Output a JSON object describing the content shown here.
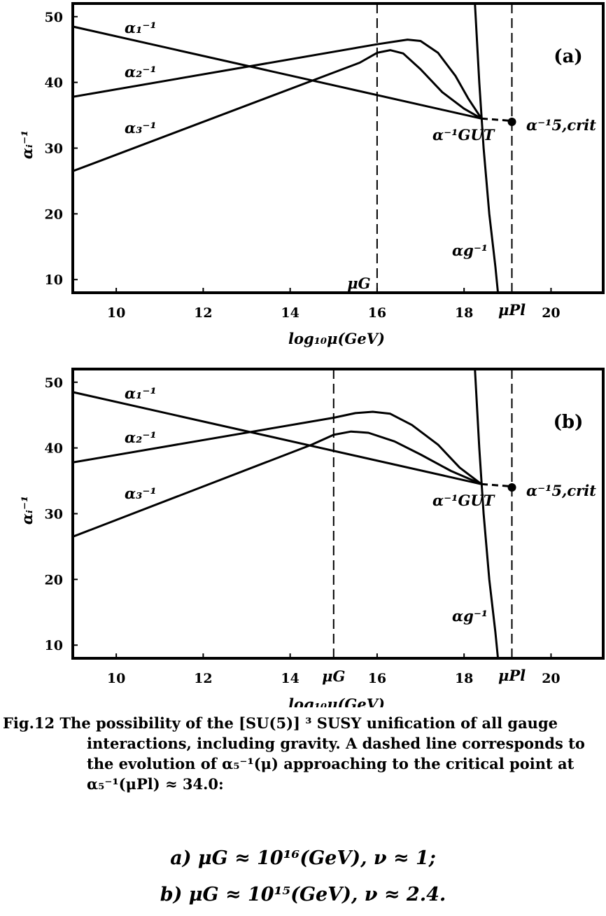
{
  "chart_data": [
    {
      "type": "line",
      "panel_label": "(a)",
      "xlabel": "log₁₀μ(GeV)",
      "ylabel": "αᵢ⁻¹",
      "xlim": [
        9,
        21.2
      ],
      "ylim": [
        8,
        52
      ],
      "xticks": [
        10,
        12,
        14,
        16,
        18,
        20
      ],
      "yticks": [
        10,
        20,
        30,
        40,
        50
      ],
      "series": [
        {
          "name": "α₁⁻¹",
          "style": "solid",
          "points": [
            [
              9,
              48.5
            ],
            [
              18.4,
              34.5
            ]
          ]
        },
        {
          "name": "α₂⁻¹",
          "style": "solid",
          "points": [
            [
              9,
              37.8
            ],
            [
              16.0,
              45.8
            ],
            [
              16.4,
              46.2
            ],
            [
              16.7,
              46.5
            ],
            [
              17.0,
              46.3
            ],
            [
              17.4,
              44.5
            ],
            [
              17.8,
              41.0
            ],
            [
              18.1,
              37.5
            ],
            [
              18.4,
              34.5
            ]
          ]
        },
        {
          "name": "α₃⁻¹",
          "style": "solid",
          "points": [
            [
              9,
              26.5
            ],
            [
              15.6,
              43.0
            ],
            [
              16.0,
              44.5
            ],
            [
              16.3,
              44.9
            ],
            [
              16.6,
              44.4
            ],
            [
              17.0,
              42.0
            ],
            [
              17.5,
              38.5
            ],
            [
              18.0,
              36.0
            ],
            [
              18.4,
              34.5
            ]
          ]
        },
        {
          "name": "α_g⁻¹",
          "style": "solid",
          "points": [
            [
              18.25,
              52.0
            ],
            [
              18.35,
              40.0
            ],
            [
              18.45,
              30.0
            ],
            [
              18.58,
              20.0
            ],
            [
              18.72,
              12.0
            ],
            [
              18.78,
              8.0
            ]
          ]
        },
        {
          "name": "α₅⁻¹",
          "style": "dashed",
          "points": [
            [
              18.4,
              34.5
            ],
            [
              19.0,
              34.2
            ],
            [
              19.1,
              34.0
            ]
          ]
        },
        {
          "name": "μ_G",
          "style": "dashed-vertical",
          "points": [
            [
              16,
              8
            ],
            [
              16,
              52
            ]
          ]
        },
        {
          "name": "μ_Pl",
          "style": "dashed-vertical",
          "points": [
            [
              19.1,
              8
            ],
            [
              19.1,
              52
            ]
          ]
        }
      ],
      "critical_point": {
        "x": 19.1,
        "y": 34.0,
        "label": "α⁻¹5,crit"
      },
      "annotations": {
        "alpha1": "α₁⁻¹",
        "alpha2": "α₂⁻¹",
        "alpha3": "α₃⁻¹",
        "alpha_gut": "α⁻¹GUT",
        "alpha_g": "αg⁻¹",
        "mu_g": "μG",
        "mu_pl": "μPl"
      }
    },
    {
      "type": "line",
      "panel_label": "(b)",
      "xlabel": "log₁₀μ(GeV)",
      "ylabel": "αᵢ⁻¹",
      "xlim": [
        9,
        21.2
      ],
      "ylim": [
        8,
        52
      ],
      "xticks": [
        10,
        12,
        14,
        16,
        18,
        20
      ],
      "yticks": [
        10,
        20,
        30,
        40,
        50
      ],
      "series": [
        {
          "name": "α₁⁻¹",
          "style": "solid",
          "points": [
            [
              9,
              48.5
            ],
            [
              18.4,
              34.5
            ]
          ]
        },
        {
          "name": "α₂⁻¹",
          "style": "solid",
          "points": [
            [
              9,
              37.8
            ],
            [
              15.0,
              44.6
            ],
            [
              15.5,
              45.3
            ],
            [
              15.9,
              45.5
            ],
            [
              16.3,
              45.2
            ],
            [
              16.8,
              43.5
            ],
            [
              17.4,
              40.5
            ],
            [
              17.9,
              37.0
            ],
            [
              18.4,
              34.5
            ]
          ]
        },
        {
          "name": "α₃⁻¹",
          "style": "solid",
          "points": [
            [
              9,
              26.5
            ],
            [
              14.5,
              40.5
            ],
            [
              15.0,
              42.0
            ],
            [
              15.4,
              42.5
            ],
            [
              15.8,
              42.3
            ],
            [
              16.4,
              41.0
            ],
            [
              17.0,
              39.0
            ],
            [
              17.7,
              36.5
            ],
            [
              18.4,
              34.5
            ]
          ]
        },
        {
          "name": "α_g⁻¹",
          "style": "solid",
          "points": [
            [
              18.25,
              52.0
            ],
            [
              18.35,
              40.0
            ],
            [
              18.45,
              30.0
            ],
            [
              18.58,
              20.0
            ],
            [
              18.72,
              12.0
            ],
            [
              18.78,
              8.0
            ]
          ]
        },
        {
          "name": "α₅⁻¹",
          "style": "dashed",
          "points": [
            [
              18.4,
              34.5
            ],
            [
              19.0,
              34.2
            ],
            [
              19.1,
              34.0
            ]
          ]
        },
        {
          "name": "μ_G",
          "style": "dashed-vertical",
          "points": [
            [
              15,
              8
            ],
            [
              15,
              52
            ]
          ]
        },
        {
          "name": "μ_Pl",
          "style": "dashed-vertical",
          "points": [
            [
              19.1,
              8
            ],
            [
              19.1,
              52
            ]
          ]
        }
      ],
      "critical_point": {
        "x": 19.1,
        "y": 34.0,
        "label": "α⁻¹5,crit"
      },
      "annotations": {
        "alpha1": "α₁⁻¹",
        "alpha2": "α₂⁻¹",
        "alpha3": "α₃⁻¹",
        "alpha_gut": "α⁻¹GUT",
        "alpha_g": "αg⁻¹",
        "mu_g": "μG",
        "mu_pl": "μPl"
      }
    }
  ],
  "caption": {
    "lead": "Fig.12",
    "text": "The possibility of the [SU(5)] ³ SUSY unification of all gauge interactions, including gravity. A dashed line corresponds to the evolution of α₅⁻¹(μ) approaching to the critical point at α₅⁻¹(μPl) ≈ 34.0:",
    "formula_a": "a)  μG ≈ 10¹⁶(GeV),   ν ≈ 1;",
    "formula_b": "b)  μG ≈ 10¹⁵(GeV),   ν ≈ 2.4."
  }
}
